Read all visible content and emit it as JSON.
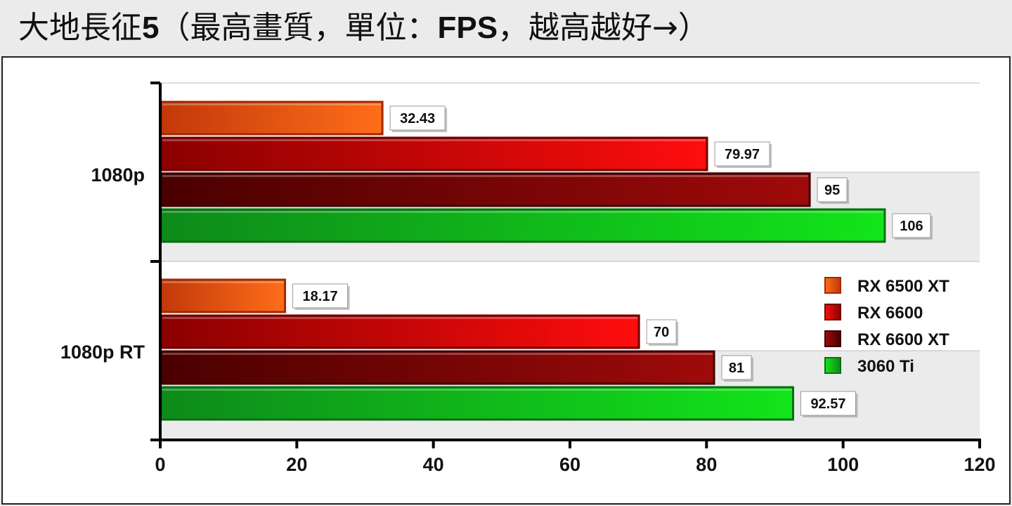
{
  "title": {
    "prefix": "大地長征",
    "bold_number": "5",
    "middle": "（最高畫質，單位：",
    "bold_unit": "FPS",
    "suffix": "，越高越好→）"
  },
  "chart_data": {
    "type": "bar",
    "orientation": "horizontal",
    "categories": [
      "1080p",
      "1080p RT"
    ],
    "series": [
      {
        "name": "RX 6500 XT",
        "values": [
          32.43,
          18.17
        ],
        "color_dark": "#c2380a",
        "color_light": "#ff6e1a",
        "border": "#a02a00"
      },
      {
        "name": "RX 6600",
        "values": [
          79.97,
          70
        ],
        "color_dark": "#8a0000",
        "color_light": "#ff0d0d",
        "border": "#6e0000"
      },
      {
        "name": "RX 6600 XT",
        "values": [
          95,
          81
        ],
        "color_dark": "#4a0000",
        "color_light": "#a00a0a",
        "border": "#3a0000"
      },
      {
        "name": "3060 Ti",
        "values": [
          106,
          92.57
        ],
        "color_dark": "#0e8a1a",
        "color_light": "#12e51a",
        "border": "#0a6e12"
      }
    ],
    "value_labels": [
      [
        "32.43",
        "18.17"
      ],
      [
        "79.97",
        "70"
      ],
      [
        "95",
        "81"
      ],
      [
        "106",
        "92.57"
      ]
    ],
    "x_ticks": [
      "0",
      "20",
      "40",
      "60",
      "80",
      "100",
      "120"
    ],
    "xlim": [
      0,
      120
    ],
    "grid": "horizontal lines at category boundaries",
    "legend_position": "right, inside lower plot area"
  }
}
